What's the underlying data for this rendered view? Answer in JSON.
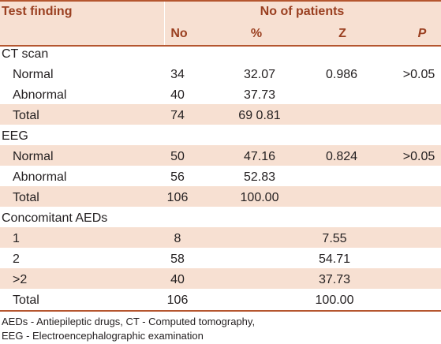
{
  "header": {
    "col_test": "Test finding",
    "group": "No of patients",
    "col_no": "No",
    "col_pct": "%",
    "col_z": "Z",
    "col_p": "P"
  },
  "sections": [
    {
      "title": "CT scan",
      "rows": [
        {
          "label": "Normal",
          "no": "34",
          "pct": "32.07",
          "z": "0.986",
          "p": ">0.05"
        },
        {
          "label": "Abnormal",
          "no": "40",
          "pct": "37.73",
          "z": "",
          "p": ""
        },
        {
          "label": "Total",
          "no": "74",
          "pct": "69 0.81",
          "z": "",
          "p": ""
        }
      ]
    },
    {
      "title": "EEG",
      "rows": [
        {
          "label": "Normal",
          "no": "50",
          "pct": "47.16",
          "z": "0.824",
          "p": ">0.05"
        },
        {
          "label": "Abnormal",
          "no": "56",
          "pct": "52.83",
          "z": "",
          "p": ""
        },
        {
          "label": "Total",
          "no": "106",
          "pct": "100.00",
          "z": "",
          "p": ""
        }
      ]
    },
    {
      "title": "Concomitant AEDs",
      "rows": [
        {
          "label": "1",
          "no": "8",
          "pct": "",
          "z": "7.55",
          "p": ""
        },
        {
          "label": "2",
          "no": "58",
          "pct": "",
          "z": "54.71",
          "p": ""
        },
        {
          "label": ">2",
          "no": "40",
          "pct": "",
          "z": "37.73",
          "p": ""
        },
        {
          "label": "Total",
          "no": "106",
          "pct": "",
          "z": "100.00",
          "p": ""
        }
      ]
    }
  ],
  "footnotes": [
    "AEDs - Antiepileptic drugs, CT - Computed tomography,",
    "EEG - Electroencephalographic examination"
  ],
  "colors": {
    "rule": "#b5562f",
    "header_bg": "#f7e0d2",
    "header_text": "#9a3f20",
    "band": "#f7e0d2"
  }
}
